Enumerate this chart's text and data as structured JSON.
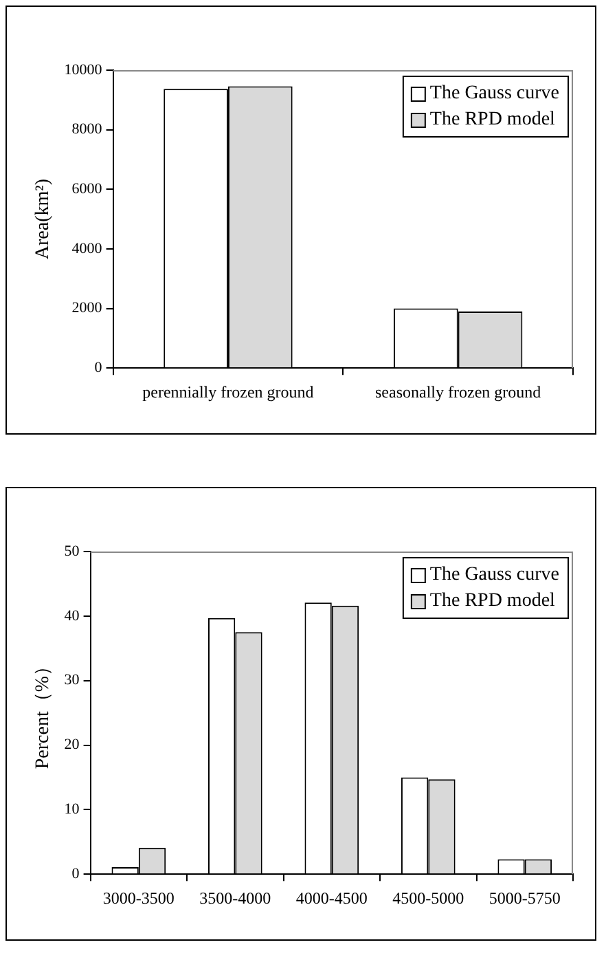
{
  "chart_data": [
    {
      "type": "bar",
      "ylabel": "Area(km²)",
      "categories": [
        "perennially frozen ground",
        "seasonally frozen ground"
      ],
      "series": [
        {
          "name": "The Gauss curve",
          "color": "#ffffff",
          "values": [
            9370,
            2000
          ]
        },
        {
          "name": "The RPD model",
          "color": "#d9d9d9",
          "values": [
            9460,
            1900
          ]
        }
      ],
      "ylim": [
        0,
        10000
      ],
      "yticks": [
        0,
        2000,
        4000,
        6000,
        8000,
        10000
      ],
      "legend": "top right"
    },
    {
      "type": "bar",
      "ylabel": "Percent（%）",
      "categories": [
        "3000-3500",
        "3500-4000",
        "4000-4500",
        "4500-5000",
        "5000-5750"
      ],
      "series": [
        {
          "name": "The Gauss curve",
          "color": "#ffffff",
          "values": [
            1.1,
            39.7,
            42.1,
            15.0,
            2.3
          ]
        },
        {
          "name": "The RPD model",
          "color": "#d9d9d9",
          "values": [
            4.1,
            37.5,
            41.6,
            14.7,
            2.3
          ]
        }
      ],
      "ylim": [
        0,
        50
      ],
      "yticks": [
        0,
        10,
        20,
        30,
        40,
        50
      ],
      "legend": "top right"
    }
  ]
}
